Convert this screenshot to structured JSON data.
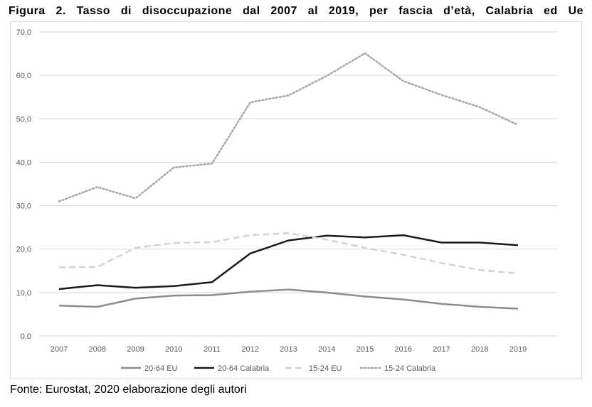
{
  "figure": {
    "title": "Figura 2. Tasso di disoccupazione dal 2007 al 2019, per fascia d’età, Calabria ed Ue",
    "source": "Fonte: Eurostat, 2020 elaborazione degli autori"
  },
  "chart_data": {
    "type": "line",
    "categories": [
      "2007",
      "2008",
      "2009",
      "2010",
      "2011",
      "2012",
      "2013",
      "2014",
      "2015",
      "2016",
      "2017",
      "2018",
      "2019"
    ],
    "ylim": [
      0,
      70
    ],
    "yticks": [
      "0,0",
      "10,0",
      "20,0",
      "30,0",
      "40,0",
      "50,0",
      "60,0",
      "70,0"
    ],
    "grid": true,
    "legend_position": "bottom",
    "series": [
      {
        "name": "20-64 EU",
        "color": "#8c8c8c",
        "dash": "solid",
        "values": [
          7.0,
          6.7,
          8.6,
          9.3,
          9.4,
          10.2,
          10.7,
          10.0,
          9.1,
          8.4,
          7.4,
          6.7,
          6.3
        ]
      },
      {
        "name": "20-64 Calabria",
        "color": "#1a1a1a",
        "dash": "solid",
        "values": [
          10.8,
          11.7,
          11.1,
          11.5,
          12.4,
          19.0,
          22.0,
          23.1,
          22.7,
          23.2,
          21.5,
          21.5,
          20.9
        ]
      },
      {
        "name": "15-24 EU",
        "color": "#d3d3d3",
        "dash": "dashed",
        "values": [
          15.8,
          15.9,
          20.3,
          21.4,
          21.6,
          23.2,
          23.7,
          22.2,
          20.3,
          18.7,
          16.8,
          15.2,
          14.4
        ]
      },
      {
        "name": "15-24 Calabria",
        "color": "#a6a6a6",
        "dash": "dotted",
        "values": [
          31.0,
          34.3,
          31.7,
          38.8,
          39.7,
          53.8,
          55.4,
          59.9,
          65.1,
          58.7,
          55.5,
          52.7,
          48.6
        ]
      }
    ]
  }
}
